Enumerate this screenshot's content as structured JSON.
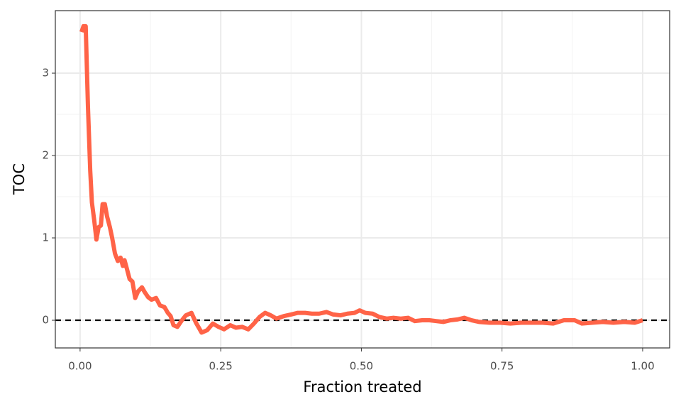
{
  "chart_data": {
    "type": "line",
    "x_label": "Fraction treated",
    "y_label": "TOC",
    "xlim": [
      -0.044,
      1.048
    ],
    "ylim": [
      -0.336,
      3.759
    ],
    "xticks": [
      {
        "value": 0,
        "label": "0.00"
      },
      {
        "value": 0.25,
        "label": "0.25"
      },
      {
        "value": 0.5,
        "label": "0.50"
      },
      {
        "value": 0.75,
        "label": "0.75"
      },
      {
        "value": 1,
        "label": "1.00"
      }
    ],
    "yticks": [
      0,
      1,
      2,
      3
    ],
    "grid": true,
    "hline": 0,
    "series": [
      {
        "color": "#ff6347",
        "x": [
          0.0025,
          0.006,
          0.01,
          0.014,
          0.018,
          0.021,
          0.025,
          0.029,
          0.033,
          0.037,
          0.04,
          0.044,
          0.048,
          0.053,
          0.057,
          0.062,
          0.067,
          0.072,
          0.076,
          0.079,
          0.083,
          0.088,
          0.093,
          0.098,
          0.103,
          0.11,
          0.115,
          0.121,
          0.127,
          0.135,
          0.142,
          0.15,
          0.156,
          0.161,
          0.166,
          0.173,
          0.18,
          0.188,
          0.198,
          0.206,
          0.216,
          0.226,
          0.236,
          0.246,
          0.256,
          0.267,
          0.277,
          0.288,
          0.299,
          0.309,
          0.319,
          0.329,
          0.339,
          0.349,
          0.362,
          0.375,
          0.387,
          0.4,
          0.412,
          0.425,
          0.438,
          0.45,
          0.463,
          0.475,
          0.488,
          0.497,
          0.507,
          0.52,
          0.532,
          0.545,
          0.557,
          0.57,
          0.583,
          0.595,
          0.608,
          0.621,
          0.633,
          0.646,
          0.658,
          0.671,
          0.683,
          0.696,
          0.709,
          0.728,
          0.747,
          0.765,
          0.784,
          0.803,
          0.822,
          0.841,
          0.86,
          0.879,
          0.892,
          0.91,
          0.929,
          0.948,
          0.967,
          0.986,
          1.0
        ],
        "values": [
          3.5,
          3.57,
          3.57,
          2.59,
          1.82,
          1.43,
          1.22,
          0.98,
          1.13,
          1.15,
          1.41,
          1.41,
          1.26,
          1.13,
          1.0,
          0.81,
          0.72,
          0.76,
          0.66,
          0.73,
          0.63,
          0.5,
          0.47,
          0.27,
          0.35,
          0.4,
          0.34,
          0.28,
          0.25,
          0.27,
          0.18,
          0.16,
          0.09,
          0.05,
          -0.06,
          -0.08,
          -0.01,
          0.06,
          0.09,
          -0.03,
          -0.15,
          -0.12,
          -0.04,
          -0.08,
          -0.11,
          -0.06,
          -0.09,
          -0.08,
          -0.11,
          -0.04,
          0.04,
          0.09,
          0.06,
          0.02,
          0.05,
          0.07,
          0.09,
          0.09,
          0.08,
          0.08,
          0.1,
          0.07,
          0.06,
          0.08,
          0.09,
          0.12,
          0.09,
          0.08,
          0.04,
          0.02,
          0.03,
          0.02,
          0.03,
          -0.01,
          0.0,
          0.0,
          -0.01,
          -0.02,
          0.0,
          0.01,
          0.03,
          0.0,
          -0.02,
          -0.03,
          -0.03,
          -0.04,
          -0.03,
          -0.03,
          -0.03,
          -0.04,
          0.0,
          0.0,
          -0.04,
          -0.03,
          -0.02,
          -0.03,
          -0.02,
          -0.03,
          0.0
        ]
      }
    ]
  }
}
